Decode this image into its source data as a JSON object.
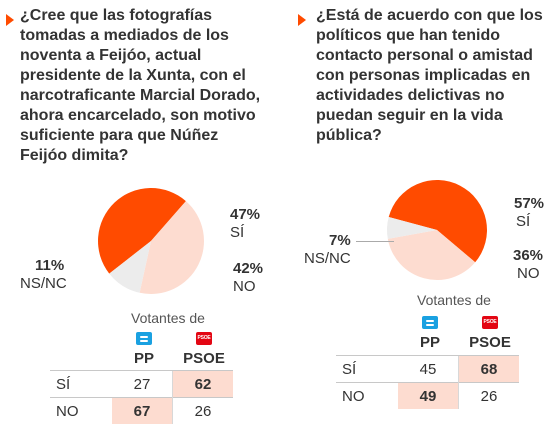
{
  "accent_color": "#ff4b00",
  "marker_icon": "triangle-right-icon",
  "chart_data": [
    {
      "type": "pie",
      "question": "¿Cree que las fotografías tomadas a mediados de los noventa a Feijóo, actual presidente de la Xunta, con el narcotraficante Marcial Dorado, ahora encarcelado, son motivo suficiente para que Núñez Feijóo dimita?",
      "slices": [
        {
          "label": "SÍ",
          "value": 47,
          "pct_label": "47%",
          "color": "#ff4b00"
        },
        {
          "label": "NO",
          "value": 42,
          "pct_label": "42%",
          "color": "#fddcd0"
        },
        {
          "label": "NS/NC",
          "value": 11,
          "pct_label": "11%",
          "color": "#ececec"
        }
      ],
      "voters_title": "Votantes de",
      "parties": [
        {
          "name": "PP",
          "logo": "pp-logo-icon"
        },
        {
          "name": "PSOE",
          "logo": "psoe-logo-icon"
        }
      ],
      "rows": [
        {
          "label": "SÍ",
          "values": [
            27,
            62
          ],
          "highlight": 1
        },
        {
          "label": "NO",
          "values": [
            67,
            26
          ],
          "highlight": 0
        }
      ]
    },
    {
      "type": "pie",
      "question": "¿Está de acuerdo con que los políticos que han tenido contacto personal o amistad con personas implicadas en actividades delictivas no puedan seguir en la vida pública?",
      "slices": [
        {
          "label": "SÍ",
          "value": 57,
          "pct_label": "57%",
          "color": "#ff4b00"
        },
        {
          "label": "NO",
          "value": 36,
          "pct_label": "36%",
          "color": "#fddcd0"
        },
        {
          "label": "NS/NC",
          "value": 7,
          "pct_label": "7%",
          "color": "#ececec"
        }
      ],
      "voters_title": "Votantes de",
      "parties": [
        {
          "name": "PP",
          "logo": "pp-logo-icon"
        },
        {
          "name": "PSOE",
          "logo": "psoe-logo-icon"
        }
      ],
      "rows": [
        {
          "label": "SÍ",
          "values": [
            45,
            68
          ],
          "highlight": 1
        },
        {
          "label": "NO",
          "values": [
            49,
            26
          ],
          "highlight": 0
        }
      ]
    }
  ]
}
